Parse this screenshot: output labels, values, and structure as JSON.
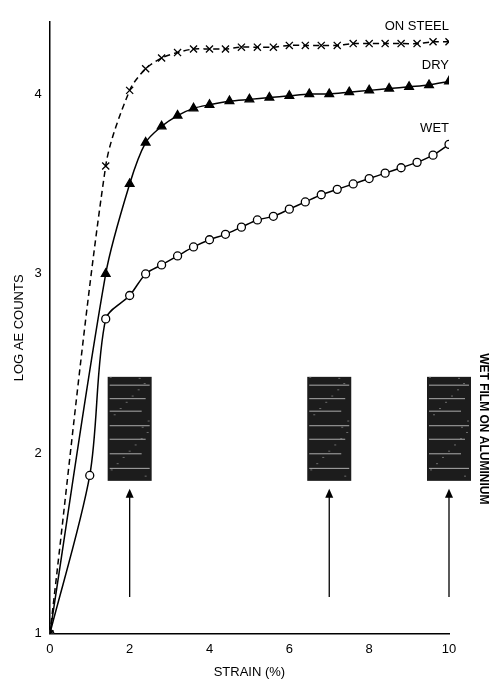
{
  "chart_data": {
    "type": "line",
    "x_label": "STRAIN (%)",
    "y_label": "LOG AE COUNTS",
    "xlim": [
      0,
      10
    ],
    "xticks": [
      0,
      2,
      4,
      6,
      8,
      10
    ],
    "ylim": [
      1,
      4.4
    ],
    "yticks": [
      1,
      2,
      3,
      4
    ],
    "grid": false,
    "series": [
      {
        "name": "ON STEEL",
        "color": "#000000",
        "marker": "cross",
        "line_style": "dashed",
        "x": [
          0,
          1.4,
          2,
          2.4,
          2.8,
          3.2,
          3.6,
          4,
          4.4,
          4.8,
          5.2,
          5.6,
          6,
          6.4,
          6.8,
          7.2,
          7.6,
          8,
          8.4,
          8.8,
          9.2,
          9.6,
          10
        ],
        "values": [
          1,
          3.6,
          4.02,
          4.14,
          4.2,
          4.23,
          4.25,
          4.25,
          4.25,
          4.26,
          4.26,
          4.26,
          4.27,
          4.27,
          4.27,
          4.27,
          4.28,
          4.28,
          4.28,
          4.28,
          4.28,
          4.29,
          4.29
        ]
      },
      {
        "name": "DRY",
        "color": "#000000",
        "marker": "triangle",
        "line_style": "solid",
        "x": [
          0,
          1.4,
          2,
          2.4,
          2.8,
          3.2,
          3.6,
          4,
          4.5,
          5,
          5.5,
          6,
          6.5,
          7,
          7.5,
          8,
          8.5,
          9,
          9.5,
          10
        ],
        "values": [
          1,
          3.0,
          3.5,
          3.73,
          3.82,
          3.88,
          3.92,
          3.94,
          3.96,
          3.97,
          3.98,
          3.99,
          4.0,
          4.0,
          4.01,
          4.02,
          4.03,
          4.04,
          4.05,
          4.07
        ]
      },
      {
        "name": "WET",
        "color": "#000000",
        "marker": "circle",
        "line_style": "solid",
        "x": [
          0,
          1,
          1.4,
          2,
          2.4,
          2.8,
          3.2,
          3.6,
          4,
          4.4,
          4.8,
          5.2,
          5.6,
          6,
          6.4,
          6.8,
          7.2,
          7.6,
          8,
          8.4,
          8.8,
          9.2,
          9.6,
          10
        ],
        "values": [
          1,
          1.88,
          2.75,
          2.88,
          3.0,
          3.05,
          3.1,
          3.15,
          3.19,
          3.22,
          3.26,
          3.3,
          3.32,
          3.36,
          3.4,
          3.44,
          3.47,
          3.5,
          3.53,
          3.56,
          3.59,
          3.62,
          3.66,
          3.72
        ]
      }
    ],
    "annotation": {
      "text": "WET FILM ON ALUMINIUM",
      "x": [
        2,
        7,
        10
      ]
    }
  }
}
